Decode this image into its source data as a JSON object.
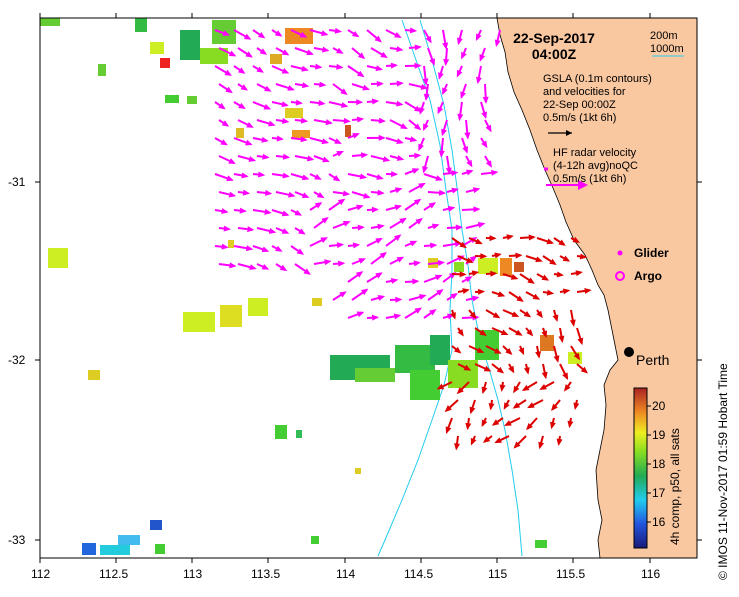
{
  "map": {
    "date_line1": "22-Sep-2017",
    "date_line2": "04:00Z",
    "isobath_200": "200m",
    "isobath_1000": "1000m",
    "gsla_line1": "GSLA (0.1m contours)",
    "gsla_line2": "and velocities for",
    "gsla_line3": "22-Sep 00:00Z",
    "gsla_scale": "0.5m/s (1kt 6h)",
    "hf_line1": "HF radar velocity",
    "hf_line2": "(4-12h avg)noQC",
    "hf_scale": "0.5m/s (1kt 6h)",
    "glider_label": "Glider",
    "argo_label": "Argo",
    "city": "Perth",
    "credit": "©  IMOS 11-Nov-2017 01:59 Hobart Time",
    "colorbar_label": "4h comp, p50, all sats",
    "colorbar_ticks": [
      "20",
      "19",
      "18",
      "17",
      "16"
    ],
    "lon_ticks": [
      "112",
      "112.5",
      "113",
      "113.5",
      "114",
      "114.5",
      "115",
      "115.5",
      "116"
    ],
    "lat_ticks": [
      "-31",
      "-32",
      "-33"
    ]
  },
  "colors": {
    "land": "#f9c7a0",
    "gsla_arrow": "#ff00ff",
    "hf_arrow": "#e00000",
    "isobath": "#22ccee",
    "glider": "#ff00ff",
    "argo": "#ff00ff"
  }
}
